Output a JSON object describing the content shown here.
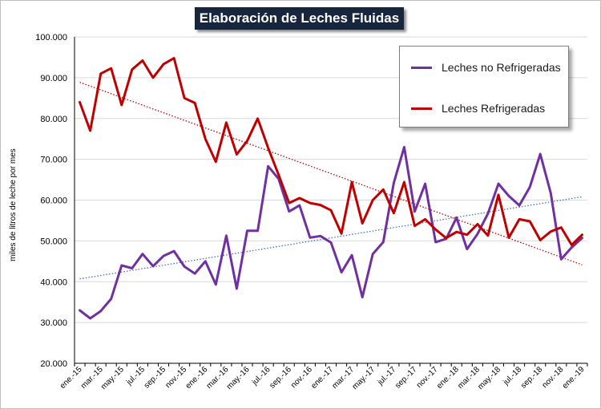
{
  "chart_data": {
    "type": "line",
    "title": "Elaboración de Leches Fluidas",
    "ylabel": "miles de litros de leche por mes",
    "xlabel": "",
    "ylim": [
      20000,
      100000
    ],
    "yticks": [
      20000,
      30000,
      40000,
      50000,
      60000,
      70000,
      80000,
      90000,
      100000
    ],
    "ytick_labels": [
      "20.000",
      "30.000",
      "40.000",
      "50.000",
      "60.000",
      "70.000",
      "80.000",
      "90.000",
      "100.000"
    ],
    "x_tick_labels": [
      "ene.-15",
      "mar.-15",
      "may.-15",
      "jul.-15",
      "sep.-15",
      "nov.-15",
      "ene.-16",
      "mar.-16",
      "may.-16",
      "jul.-16",
      "sep.-16",
      "nov.-16",
      "ene.-17",
      "mar.-17",
      "may.-17",
      "jul.-17",
      "sep.-17",
      "nov.-17",
      "ene.-18",
      "mar.-18",
      "may.-18",
      "jul.-18",
      "sep.-18",
      "nov.-18",
      "ene.-19"
    ],
    "grid": true,
    "legend_position": "top-right",
    "series": [
      {
        "name": "Leches no Refrigeradas",
        "color": "#7030a0",
        "values": [
          33000,
          31000,
          32800,
          35800,
          44000,
          43300,
          46800,
          43800,
          46300,
          47500,
          43700,
          42000,
          45000,
          39300,
          51300,
          38300,
          52500,
          52500,
          68300,
          65200,
          57200,
          58700,
          50800,
          51200,
          49600,
          42300,
          46500,
          36200,
          46800,
          49700,
          64200,
          73000,
          57200,
          64000,
          49700,
          50500,
          55700,
          48000,
          51700,
          56700,
          64000,
          61000,
          58700,
          63200,
          71300,
          61700,
          45500,
          48400,
          50700
        ]
      },
      {
        "name": "Leches Refrigeradas",
        "color": "#c00000",
        "values": [
          84000,
          77000,
          91000,
          92300,
          83300,
          92000,
          94200,
          90000,
          93300,
          94800,
          85000,
          83800,
          75000,
          69400,
          79000,
          71200,
          74500,
          80000,
          72800,
          66200,
          59300,
          60500,
          59300,
          58800,
          57500,
          51800,
          64400,
          54300,
          60000,
          62600,
          56800,
          64400,
          53700,
          55300,
          52800,
          50700,
          52200,
          51500,
          54100,
          51300,
          61300,
          50800,
          55300,
          54800,
          50200,
          52300,
          53300,
          49000,
          51500
        ]
      }
    ],
    "trendlines": [
      {
        "series": "Leches no Refrigeradas",
        "color": "#4472c4",
        "style": "dotted"
      },
      {
        "series": "Leches Refrigeradas",
        "color": "#c00000",
        "style": "dotted"
      }
    ]
  }
}
